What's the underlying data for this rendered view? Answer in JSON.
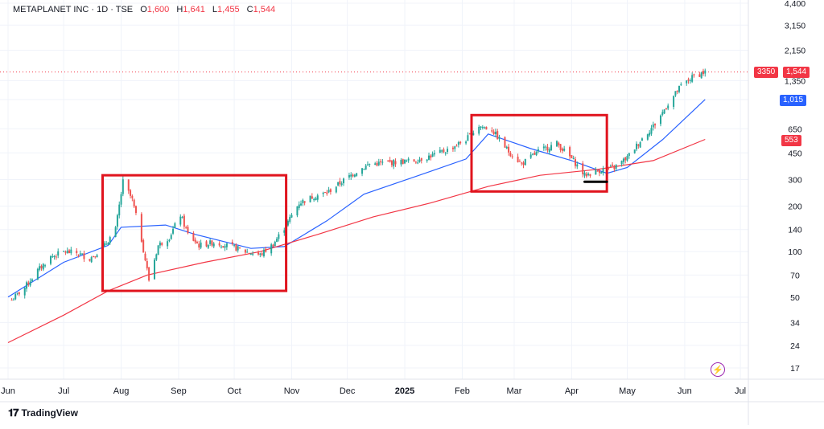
{
  "header": {
    "symbol": "METAPLANET INC · 1D · TSE",
    "o_label": "O",
    "o_value": "1,600",
    "h_label": "H",
    "h_value": "1,641",
    "l_label": "L",
    "l_value": "1,455",
    "c_label": "C",
    "c_value": "1,544"
  },
  "footer": {
    "brand": "TradingView"
  },
  "price_axis": {
    "ticks": [
      "4,400",
      "3,150",
      "2,150",
      "1,350",
      "1,015",
      "650",
      "450",
      "300",
      "200",
      "140",
      "100",
      "70",
      "50",
      "34",
      "24",
      "17"
    ],
    "badges": {
      "countdown": "3350",
      "last_price": "1,544",
      "blue_ma": "1,015",
      "red_ma": "553"
    }
  },
  "time_axis": {
    "labels": [
      "Jun",
      "Jul",
      "Aug",
      "Sep",
      "Oct",
      "Nov",
      "Dec",
      "2025",
      "Feb",
      "Mar",
      "Apr",
      "May",
      "Jun",
      "Jul"
    ]
  },
  "colors": {
    "up": "#26a69a",
    "down": "#ef5350",
    "blue_ma": "#2962ff",
    "red_ma": "#f23645",
    "highlight_box": "#e0141e",
    "grid": "#f0f3fa",
    "text": "#131722"
  },
  "icons": {
    "logo": "tradingview-logo-icon",
    "lightning": "lightning-icon"
  },
  "chart_data": {
    "type": "candlestick",
    "title": "METAPLANET INC · 1D · TSE",
    "y_scale": "log",
    "ylim": [
      15,
      5000
    ],
    "x_range": [
      "2024-06-01",
      "2025-07-14"
    ],
    "last_ohlc": {
      "open": 1600,
      "high": 1641,
      "low": 1455,
      "close": 1544
    },
    "price_series_approx": [
      [
        "2024-06-03",
        48
      ],
      [
        "2024-06-10",
        58
      ],
      [
        "2024-06-17",
        75
      ],
      [
        "2024-06-24",
        92
      ],
      [
        "2024-07-01",
        100
      ],
      [
        "2024-07-08",
        98
      ],
      [
        "2024-07-15",
        90
      ],
      [
        "2024-07-22",
        105
      ],
      [
        "2024-07-29",
        140
      ],
      [
        "2024-08-02",
        290
      ],
      [
        "2024-08-07",
        220
      ],
      [
        "2024-08-12",
        120
      ],
      [
        "2024-08-16",
        65
      ],
      [
        "2024-08-21",
        110
      ],
      [
        "2024-08-27",
        125
      ],
      [
        "2024-09-02",
        175
      ],
      [
        "2024-09-06",
        130
      ],
      [
        "2024-09-12",
        110
      ],
      [
        "2024-09-20",
        115
      ],
      [
        "2024-09-30",
        108
      ],
      [
        "2024-10-07",
        100
      ],
      [
        "2024-10-15",
        95
      ],
      [
        "2024-10-22",
        112
      ],
      [
        "2024-10-29",
        150
      ],
      [
        "2024-11-05",
        210
      ],
      [
        "2024-11-12",
        230
      ],
      [
        "2024-11-20",
        245
      ],
      [
        "2024-11-28",
        290
      ],
      [
        "2024-12-06",
        340
      ],
      [
        "2024-12-13",
        380
      ],
      [
        "2024-12-20",
        385
      ],
      [
        "2025-01-06",
        400
      ],
      [
        "2025-01-15",
        430
      ],
      [
        "2025-01-24",
        470
      ],
      [
        "2025-02-03",
        550
      ],
      [
        "2025-02-10",
        680
      ],
      [
        "2025-02-17",
        640
      ],
      [
        "2025-02-26",
        460
      ],
      [
        "2025-03-05",
        380
      ],
      [
        "2025-03-14",
        460
      ],
      [
        "2025-03-24",
        520
      ],
      [
        "2025-04-02",
        400
      ],
      [
        "2025-04-08",
        320
      ],
      [
        "2025-04-16",
        345
      ],
      [
        "2025-04-24",
        360
      ],
      [
        "2025-05-01",
        420
      ],
      [
        "2025-05-09",
        560
      ],
      [
        "2025-05-16",
        700
      ],
      [
        "2025-05-23",
        950
      ],
      [
        "2025-05-30",
        1250
      ],
      [
        "2025-06-06",
        1450
      ],
      [
        "2025-06-12",
        1544
      ]
    ],
    "series": [
      {
        "values_approx": [
          [
            "2024-06-01",
            50
          ],
          [
            "2024-07-01",
            85
          ],
          [
            "2024-07-25",
            110
          ],
          [
            "2024-08-01",
            145
          ],
          [
            "2024-08-25",
            150
          ],
          [
            "2024-09-10",
            130
          ],
          [
            "2024-10-10",
            105
          ],
          [
            "2024-10-28",
            108
          ],
          [
            "2024-11-20",
            160
          ],
          [
            "2024-12-10",
            240
          ],
          [
            "2025-01-15",
            340
          ],
          [
            "2025-02-03",
            410
          ],
          [
            "2025-02-15",
            600
          ],
          [
            "2025-03-10",
            480
          ],
          [
            "2025-04-01",
            400
          ],
          [
            "2025-04-20",
            330
          ],
          [
            "2025-05-01",
            360
          ],
          [
            "2025-05-20",
            550
          ],
          [
            "2025-06-12",
            1015
          ]
        ]
      },
      {
        "values_approx": [
          [
            "2024-06-01",
            25
          ],
          [
            "2024-07-01",
            38
          ],
          [
            "2024-07-25",
            55
          ],
          [
            "2024-08-15",
            70
          ],
          [
            "2024-09-15",
            85
          ],
          [
            "2024-10-15",
            100
          ],
          [
            "2024-11-15",
            130
          ],
          [
            "2024-12-15",
            170
          ],
          [
            "2025-01-15",
            210
          ],
          [
            "2025-02-15",
            270
          ],
          [
            "2025-03-15",
            320
          ],
          [
            "2025-04-15",
            350
          ],
          [
            "2025-05-15",
            400
          ],
          [
            "2025-06-12",
            553
          ]
        ]
      }
    ],
    "annotations": [
      {
        "shape": "rectangle",
        "from": "2024-07-22",
        "to": "2024-10-29",
        "y_range": [
          55,
          320
        ]
      },
      {
        "shape": "rectangle",
        "from": "2025-02-06",
        "to": "2025-04-20",
        "y_range": [
          250,
          800
        ]
      },
      {
        "shape": "horizontal_line",
        "from": "2025-04-08",
        "to": "2025-04-20",
        "y": 290
      }
    ]
  }
}
